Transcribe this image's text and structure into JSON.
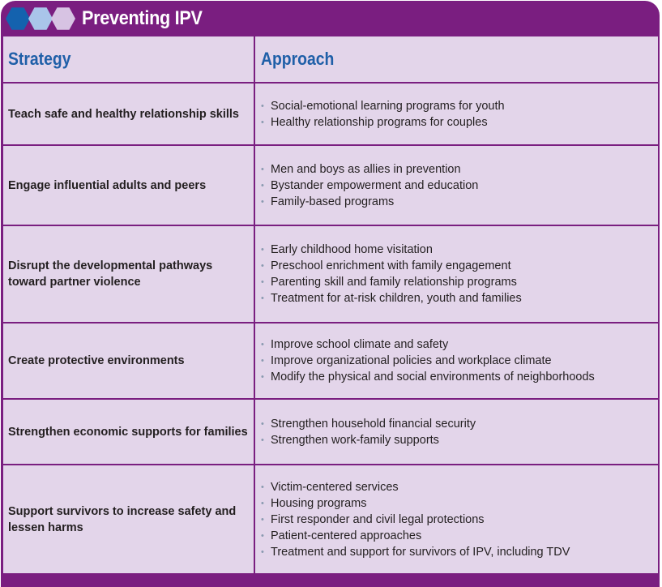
{
  "title": "Preventing IPV",
  "header": {
    "strategy": "Strategy",
    "approach": "Approach"
  },
  "colors": {
    "frame": "#7a1e80",
    "cell": "#e3d5ea",
    "header_text": "#1f5fa8",
    "hex1": "#1462ae",
    "hex2": "#a9c5ea",
    "hex3": "#d7c3e3"
  },
  "rows": [
    {
      "strategy": "Teach safe and healthy relationship skills",
      "approaches": [
        "Social-emotional learning programs for youth",
        "Healthy relationship programs for couples"
      ]
    },
    {
      "strategy": "Engage influential adults and peers",
      "approaches": [
        "Men and boys as allies in prevention",
        "Bystander empowerment and education",
        "Family-based programs"
      ]
    },
    {
      "strategy": "Disrupt the developmental pathways toward partner violence",
      "approaches": [
        "Early childhood home visitation",
        "Preschool enrichment with family engagement",
        "Parenting skill and family relationship programs",
        "Treatment for at-risk children, youth and families"
      ]
    },
    {
      "strategy": "Create protective environments",
      "approaches": [
        "Improve school climate and safety",
        "Improve organizational policies and workplace climate",
        "Modify the physical and social environments of neighborhoods"
      ]
    },
    {
      "strategy": "Strengthen economic supports for families",
      "approaches": [
        "Strengthen household financial security",
        "Strengthen work-family supports"
      ]
    },
    {
      "strategy": "Support survivors to increase safety and lessen harms",
      "approaches": [
        "Victim-centered services",
        "Housing programs",
        "First responder and civil legal protections",
        "Patient-centered approaches",
        "Treatment and support for survivors of IPV, including TDV"
      ]
    }
  ]
}
